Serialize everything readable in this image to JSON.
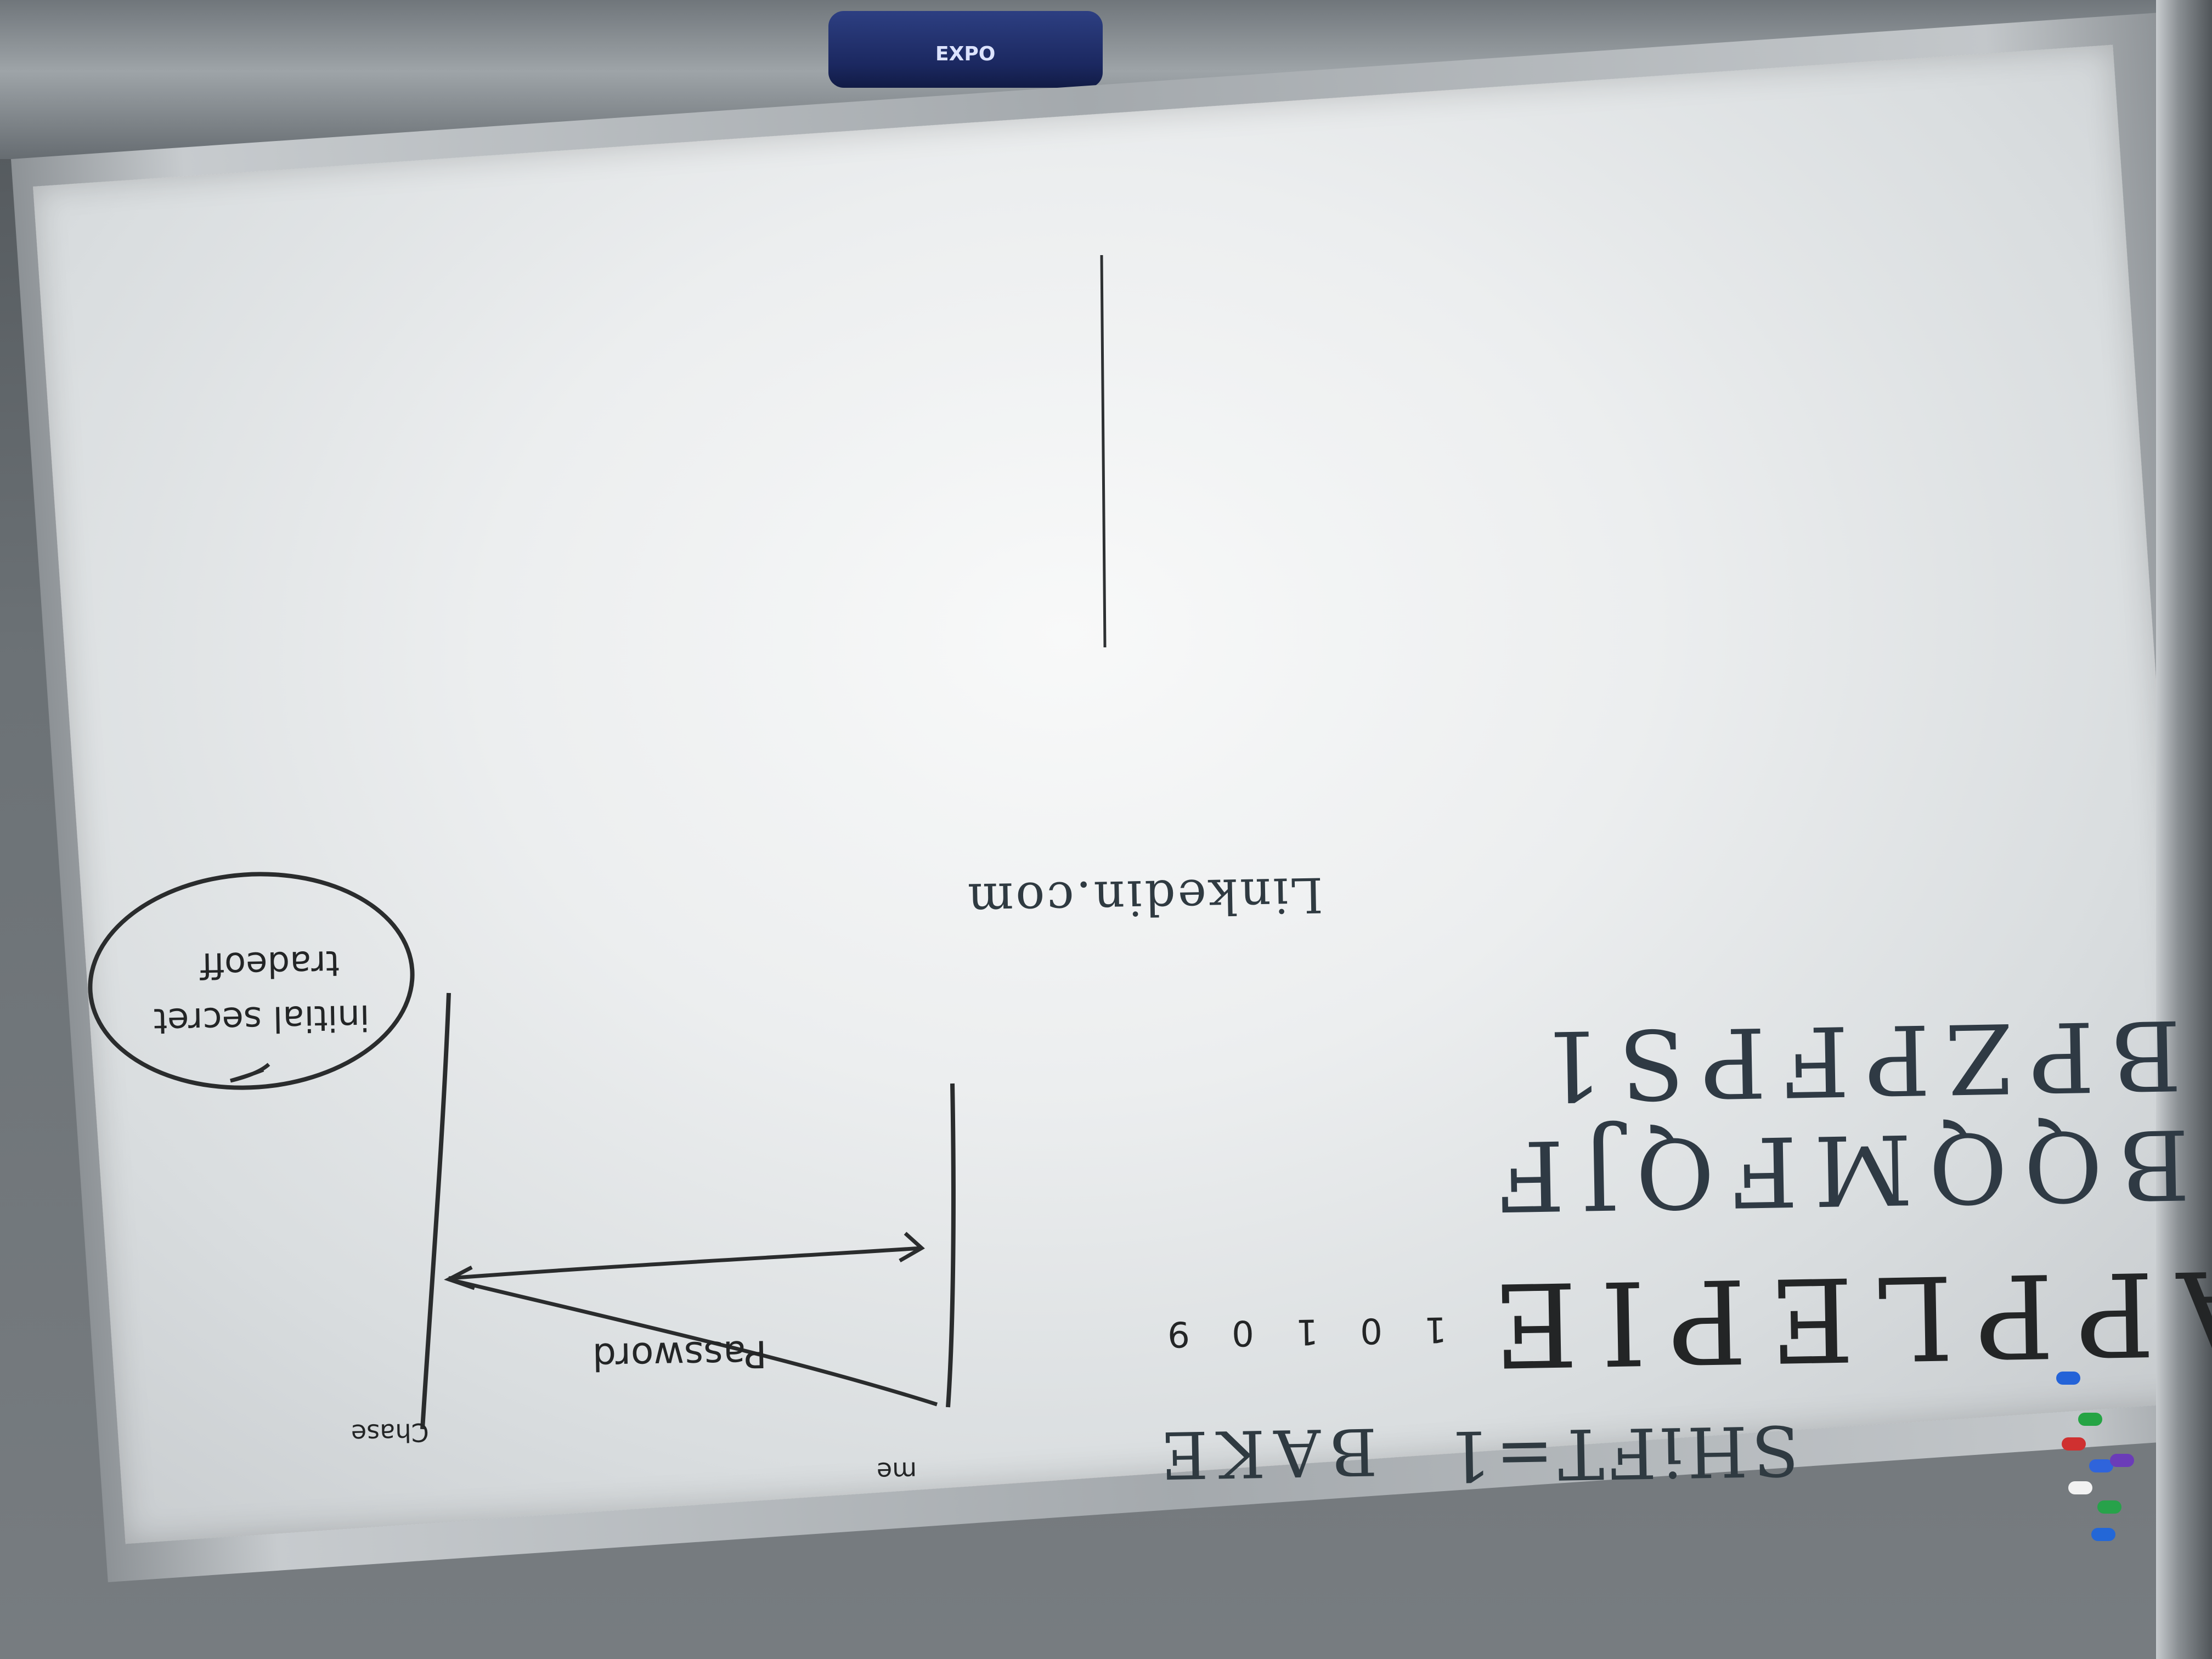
{
  "image": {
    "marker_brand": "EXPO",
    "text": {
      "shift": "SHiFT=1",
      "bake": "BAKE",
      "nums": "1 0 1 0 9",
      "apple": "APPLEPIE",
      "row2": "BQQMFQJF",
      "row3": "BPZPFPS1",
      "site": "Linkedin.com",
      "password": "Password",
      "me": "me",
      "chase": "Chase",
      "oval_line1": "initial secret",
      "oval_line2": "tradeoff"
    },
    "colors": {
      "ink": "#232526",
      "blue_ink": "#2d4a8a",
      "board": "#eceeef"
    }
  }
}
